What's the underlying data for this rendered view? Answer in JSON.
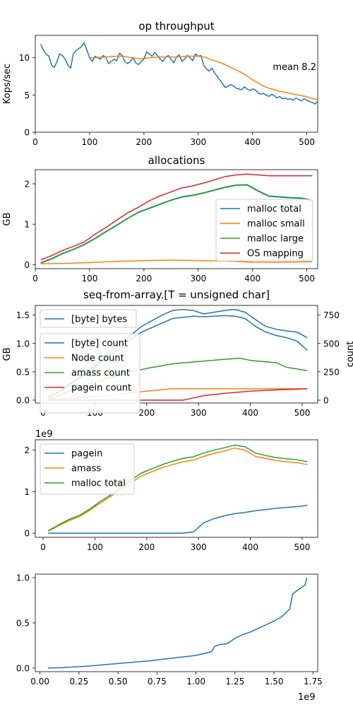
{
  "colors": {
    "blue": "#1f77b4",
    "orange": "#ff7f0e",
    "green": "#2ca02c",
    "red": "#d62728"
  },
  "chart_data": [
    {
      "type": "line",
      "title": "op throughput",
      "xlabel": "",
      "ylabel": "Kops/sec",
      "xlim": [
        0,
        520
      ],
      "ylim": [
        0,
        13
      ],
      "xticks": [
        0,
        100,
        200,
        300,
        400,
        500
      ],
      "yticks": [
        0,
        5,
        10
      ],
      "annotation": "mean 8.2",
      "legend": "none",
      "series": [
        {
          "key": "raw",
          "color": "blue",
          "x": [
            10,
            15,
            20,
            25,
            30,
            35,
            40,
            45,
            50,
            55,
            60,
            65,
            70,
            75,
            80,
            85,
            90,
            95,
            100,
            105,
            110,
            115,
            120,
            125,
            130,
            135,
            140,
            145,
            150,
            155,
            160,
            165,
            170,
            175,
            180,
            185,
            190,
            195,
            200,
            205,
            210,
            215,
            220,
            225,
            230,
            235,
            240,
            245,
            250,
            255,
            260,
            265,
            270,
            275,
            280,
            285,
            290,
            295,
            300,
            305,
            310,
            315,
            320,
            325,
            330,
            335,
            340,
            345,
            350,
            355,
            360,
            365,
            370,
            375,
            380,
            385,
            390,
            395,
            400,
            405,
            410,
            415,
            420,
            425,
            430,
            435,
            440,
            445,
            450,
            455,
            460,
            465,
            470,
            475,
            480,
            485,
            490,
            495,
            500,
            505,
            510,
            515,
            520
          ],
          "y": [
            11.8,
            11.0,
            10.5,
            10.2,
            9.0,
            8.7,
            9.5,
            10.5,
            10.3,
            9.8,
            9.0,
            8.6,
            10.5,
            11.0,
            11.2,
            11.5,
            12.0,
            11.0,
            10.0,
            9.5,
            10.2,
            10.0,
            9.8,
            10.3,
            10.0,
            9.2,
            9.5,
            9.8,
            9.6,
            10.6,
            10.3,
            9.5,
            9.2,
            9.5,
            10.0,
            9.3,
            9.1,
            9.5,
            9.8,
            10.8,
            10.5,
            10.2,
            10.7,
            10.3,
            9.8,
            9.5,
            10.1,
            10.3,
            9.8,
            9.3,
            10.1,
            10.4,
            9.5,
            9.8,
            10.3,
            10.0,
            9.6,
            10.5,
            10.2,
            10.3,
            9.0,
            8.5,
            8.2,
            8.6,
            8.0,
            7.5,
            7.0,
            6.5,
            6.0,
            6.2,
            6.4,
            6.2,
            5.9,
            5.8,
            5.7,
            6.1,
            5.8,
            5.6,
            5.8,
            5.7,
            5.3,
            5.1,
            5.2,
            5.0,
            4.8,
            5.1,
            4.9,
            4.6,
            4.8,
            4.5,
            4.6,
            4.4,
            4.5,
            4.3,
            4.6,
            4.4,
            4.2,
            4.5,
            4.3,
            4.1,
            4.0,
            3.8,
            4.1
          ]
        },
        {
          "key": "smooth",
          "color": "orange",
          "x": [
            100,
            110,
            120,
            130,
            140,
            150,
            160,
            170,
            180,
            190,
            200,
            210,
            220,
            230,
            240,
            250,
            260,
            270,
            280,
            290,
            300,
            310,
            320,
            330,
            340,
            350,
            360,
            370,
            380,
            390,
            400,
            410,
            420,
            430,
            440,
            450,
            460,
            470,
            480,
            490,
            500,
            510,
            520
          ],
          "y": [
            10.0,
            10.0,
            10.05,
            10.1,
            10.15,
            10.2,
            10.2,
            10.1,
            10.0,
            9.85,
            9.9,
            10.0,
            10.05,
            10.1,
            10.1,
            10.1,
            10.1,
            10.15,
            10.2,
            10.2,
            10.2,
            10.1,
            9.85,
            9.6,
            9.35,
            9.05,
            8.7,
            8.35,
            8.0,
            7.55,
            7.05,
            6.6,
            6.2,
            5.9,
            5.7,
            5.5,
            5.35,
            5.2,
            5.05,
            4.9,
            4.75,
            4.55,
            4.35
          ]
        }
      ]
    },
    {
      "type": "line",
      "title": "allocations",
      "xlabel": "",
      "ylabel": "GB",
      "xlim": [
        0,
        520
      ],
      "ylim": [
        -0.1,
        2.35
      ],
      "xticks": [
        0,
        100,
        200,
        300,
        400,
        500
      ],
      "yticks": [
        0,
        1,
        2
      ],
      "legend": "lower right",
      "series": [
        {
          "name": "malloc total",
          "key": "a_total",
          "color": "blue",
          "x": [
            10,
            30,
            50,
            70,
            90,
            110,
            130,
            150,
            170,
            190,
            210,
            230,
            250,
            270,
            290,
            310,
            330,
            350,
            370,
            390,
            410,
            430,
            450,
            470,
            490,
            510
          ],
          "y": [
            0.05,
            0.15,
            0.28,
            0.38,
            0.5,
            0.65,
            0.82,
            0.98,
            1.15,
            1.3,
            1.4,
            1.5,
            1.6,
            1.68,
            1.72,
            1.78,
            1.85,
            1.92,
            1.97,
            1.98,
            1.83,
            1.7,
            1.68,
            1.66,
            1.65,
            1.6
          ]
        },
        {
          "name": "malloc small",
          "key": "a_small",
          "color": "orange",
          "x": [
            10,
            50,
            100,
            150,
            200,
            250,
            300,
            350,
            400,
            450,
            510
          ],
          "y": [
            0.02,
            0.03,
            0.05,
            0.08,
            0.1,
            0.11,
            0.1,
            0.09,
            0.06,
            0.06,
            0.07
          ]
        },
        {
          "name": "malloc large",
          "key": "a_large",
          "color": "green",
          "x": [
            10,
            30,
            50,
            70,
            90,
            110,
            130,
            150,
            170,
            190,
            210,
            230,
            250,
            270,
            290,
            310,
            330,
            350,
            370,
            390,
            410,
            430,
            450,
            470,
            490,
            510
          ],
          "y": [
            0.04,
            0.14,
            0.27,
            0.37,
            0.49,
            0.64,
            0.81,
            0.97,
            1.14,
            1.29,
            1.39,
            1.49,
            1.59,
            1.67,
            1.71,
            1.77,
            1.84,
            1.91,
            1.96,
            1.97,
            1.82,
            1.69,
            1.67,
            1.65,
            1.64,
            1.59
          ]
        },
        {
          "name": "OS mapping",
          "key": "a_os",
          "color": "red",
          "x": [
            10,
            30,
            50,
            70,
            90,
            110,
            130,
            150,
            170,
            190,
            210,
            230,
            250,
            270,
            290,
            310,
            330,
            350,
            370,
            390,
            410,
            430,
            450,
            470,
            490,
            510
          ],
          "y": [
            0.12,
            0.22,
            0.35,
            0.45,
            0.56,
            0.75,
            0.92,
            1.1,
            1.28,
            1.42,
            1.58,
            1.7,
            1.8,
            1.9,
            1.95,
            2.02,
            2.1,
            2.18,
            2.22,
            2.24,
            2.22,
            2.2,
            2.2,
            2.2,
            2.2,
            2.2
          ]
        }
      ]
    },
    {
      "type": "line",
      "title": "seq-from-array.[T = unsigned char]",
      "xlabel": "",
      "ylabel": "GB",
      "ylabel_right": "count",
      "xlim": [
        -15,
        530
      ],
      "ylim": [
        -0.05,
        1.67
      ],
      "y2lim": [
        -25,
        835
      ],
      "xticks": [
        0,
        100,
        200,
        300,
        400,
        500
      ],
      "yticks": [
        0.0,
        0.5,
        1.0,
        1.5
      ],
      "y2ticks": [
        0,
        250,
        500,
        750
      ],
      "legend": "upper left",
      "series": [
        {
          "name": "[byte] bytes",
          "key": "s_bytes",
          "color": "blue",
          "axis": "left",
          "x": [
            10,
            30,
            50,
            70,
            90,
            110,
            130,
            150,
            170,
            190,
            210,
            230,
            250,
            270,
            290,
            310,
            330,
            350,
            370,
            390,
            410,
            430,
            450,
            470,
            490,
            510
          ],
          "y": [
            0.05,
            0.15,
            0.28,
            0.4,
            0.55,
            0.7,
            0.85,
            1.0,
            1.15,
            1.3,
            1.4,
            1.5,
            1.58,
            1.6,
            1.58,
            1.52,
            1.55,
            1.58,
            1.6,
            1.55,
            1.42,
            1.3,
            1.25,
            1.22,
            1.2,
            1.1
          ]
        },
        {
          "name": "[byte] count",
          "key": "s_count",
          "color": "blue",
          "axis": "right",
          "x": [
            10,
            30,
            50,
            70,
            90,
            110,
            130,
            150,
            170,
            190,
            210,
            230,
            250,
            270,
            290,
            310,
            330,
            350,
            370,
            390,
            410,
            430,
            450,
            470,
            490,
            510
          ],
          "y": [
            20,
            70,
            130,
            190,
            260,
            330,
            400,
            470,
            540,
            600,
            640,
            680,
            720,
            730,
            740,
            735,
            740,
            745,
            740,
            720,
            650,
            600,
            570,
            550,
            520,
            440
          ]
        },
        {
          "name": "Node count",
          "key": "s_node",
          "color": "orange",
          "axis": "right",
          "x": [
            10,
            100,
            200,
            250,
            300,
            400,
            510
          ],
          "y": [
            5,
            30,
            80,
            100,
            100,
            100,
            100
          ]
        },
        {
          "name": "amass count",
          "key": "s_amass",
          "color": "green",
          "axis": "right",
          "x": [
            10,
            50,
            100,
            150,
            200,
            250,
            300,
            350,
            380,
            400,
            450,
            470,
            510
          ],
          "y": [
            0,
            80,
            160,
            230,
            280,
            320,
            340,
            360,
            370,
            350,
            330,
            290,
            260
          ]
        },
        {
          "name": "pagein count",
          "key": "s_pagein",
          "color": "red",
          "axis": "right",
          "x": [
            10,
            100,
            200,
            270,
            290,
            310,
            350,
            400,
            450,
            510
          ],
          "y": [
            0,
            0,
            0,
            0,
            20,
            40,
            60,
            80,
            90,
            100
          ]
        }
      ]
    },
    {
      "type": "line",
      "title": "",
      "xlabel": "",
      "ylabel": "",
      "offset_label": "1e9",
      "xlim": [
        -15,
        530
      ],
      "ylim": [
        -0.1,
        2.25
      ],
      "xticks": [
        0,
        100,
        200,
        300,
        400,
        500
      ],
      "yticks": [
        0,
        1,
        2
      ],
      "legend": "upper left",
      "series": [
        {
          "name": "pagein",
          "key": "p_pagein",
          "color": "blue",
          "x": [
            10,
            100,
            200,
            270,
            290,
            310,
            330,
            350,
            370,
            390,
            410,
            430,
            450,
            470,
            490,
            510
          ],
          "y": [
            0,
            0,
            0,
            0,
            0.03,
            0.25,
            0.35,
            0.42,
            0.47,
            0.5,
            0.54,
            0.57,
            0.6,
            0.62,
            0.64,
            0.67
          ]
        },
        {
          "name": "amass",
          "key": "p_amass",
          "color": "orange",
          "x": [
            10,
            30,
            50,
            70,
            90,
            110,
            130,
            150,
            170,
            190,
            210,
            230,
            250,
            270,
            290,
            310,
            330,
            350,
            370,
            390,
            410,
            430,
            450,
            470,
            490,
            510
          ],
          "y": [
            0.05,
            0.18,
            0.3,
            0.4,
            0.55,
            0.72,
            0.88,
            1.05,
            1.22,
            1.38,
            1.48,
            1.58,
            1.65,
            1.72,
            1.76,
            1.85,
            1.92,
            1.98,
            2.05,
            2.0,
            1.85,
            1.8,
            1.75,
            1.72,
            1.7,
            1.65
          ]
        },
        {
          "name": "malloc total",
          "key": "p_total",
          "color": "green",
          "x": [
            10,
            30,
            50,
            70,
            90,
            110,
            130,
            150,
            170,
            190,
            210,
            230,
            250,
            270,
            290,
            310,
            330,
            350,
            370,
            390,
            410,
            430,
            450,
            470,
            490,
            510
          ],
          "y": [
            0.06,
            0.2,
            0.33,
            0.43,
            0.58,
            0.76,
            0.92,
            1.1,
            1.28,
            1.45,
            1.55,
            1.65,
            1.73,
            1.8,
            1.84,
            1.93,
            2.0,
            2.06,
            2.12,
            2.08,
            1.93,
            1.87,
            1.82,
            1.79,
            1.77,
            1.72
          ]
        }
      ]
    },
    {
      "type": "line",
      "title": "",
      "xlabel": "",
      "ylabel": "",
      "offset_label": "1e9",
      "xlim": [
        -0.03,
        1.78
      ],
      "ylim": [
        -0.04,
        1.04
      ],
      "xticks": [
        0.0,
        0.25,
        0.5,
        0.75,
        1.0,
        1.25,
        1.5,
        1.75
      ],
      "xticklabels": [
        "0.00",
        "0.25",
        "0.50",
        "0.75",
        "1.00",
        "1.25",
        "1.50",
        "1.75"
      ],
      "yticks": [
        0.0,
        0.5,
        1.0
      ],
      "legend": "none",
      "series": [
        {
          "key": "cdf",
          "color": "blue",
          "x": [
            0.05,
            0.15,
            0.3,
            0.4,
            0.5,
            0.6,
            0.7,
            0.8,
            0.9,
            1.0,
            1.05,
            1.1,
            1.12,
            1.15,
            1.2,
            1.25,
            1.3,
            1.35,
            1.4,
            1.45,
            1.5,
            1.55,
            1.6,
            1.62,
            1.65,
            1.7,
            1.71
          ],
          "y": [
            0.0,
            0.005,
            0.02,
            0.035,
            0.05,
            0.065,
            0.08,
            0.1,
            0.12,
            0.14,
            0.16,
            0.18,
            0.24,
            0.26,
            0.27,
            0.33,
            0.37,
            0.4,
            0.44,
            0.48,
            0.52,
            0.57,
            0.65,
            0.82,
            0.86,
            0.92,
            1.0
          ]
        }
      ]
    }
  ]
}
